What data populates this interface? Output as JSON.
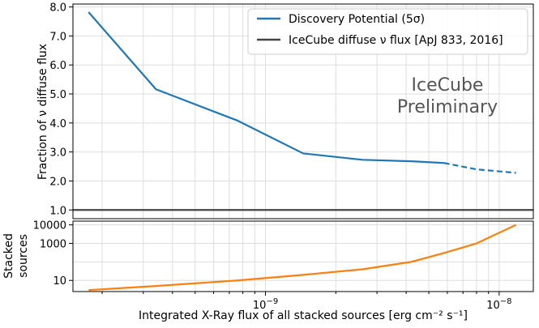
{
  "chart_data": [
    {
      "type": "line",
      "panel": "top",
      "xscale": "log",
      "xlim": [
        1.5e-10,
        1.4e-08
      ],
      "ylim": [
        0.7,
        8.1
      ],
      "ylabel": "Fraction of ν diffuse flux",
      "yticks": [
        1.0,
        2.0,
        3.0,
        4.0,
        5.0,
        6.0,
        7.0,
        8.0
      ],
      "ytick_labels": [
        "1.0",
        "2.0",
        "3.0",
        "4.0",
        "5.0",
        "6.0",
        "7.0",
        "8.0"
      ],
      "grid": true,
      "legend_position": "top-right",
      "series": [
        {
          "name": "Discovery Potential (5σ)",
          "color": "#1f77b4",
          "x": [
            1.75e-10,
            3.4e-10,
            7.6e-10,
            1.45e-09,
            2.6e-09,
            4.2e-09,
            5.8e-09
          ],
          "y": [
            7.82,
            5.16,
            4.08,
            2.95,
            2.73,
            2.68,
            2.62
          ],
          "dashed_x": [
            5.8e-09,
            8e-09,
            1.18e-08
          ],
          "dashed_y": [
            2.62,
            2.4,
            2.28
          ]
        },
        {
          "name": "IceCube diffuse ν flux [ApJ 833, 2016]",
          "color": "#444444",
          "y": 1.0
        }
      ],
      "annotation": [
        "IceCube",
        "Preliminary"
      ]
    },
    {
      "type": "line",
      "panel": "bottom",
      "xscale": "log",
      "yscale": "log",
      "xlim": [
        1.5e-10,
        1.4e-08
      ],
      "ylim": [
        2.5,
        16000
      ],
      "ylabel": [
        "Stacked",
        "sources"
      ],
      "xlabel": "Integrated X-Ray flux of all stacked sources [erg cm⁻² s⁻¹]",
      "xtick_labels": [
        {
          "x": 1e-09,
          "mantissa": "10",
          "exp": "−9"
        },
        {
          "x": 1e-08,
          "mantissa": "10",
          "exp": "−8"
        }
      ],
      "yticks": [
        10,
        1000,
        10000
      ],
      "ytick_labels": [
        "10",
        "1000",
        "10000"
      ],
      "grid": true,
      "series": [
        {
          "name": "",
          "color": "#ff7f0e",
          "x": [
            1.75e-10,
            3.4e-10,
            7.6e-10,
            1.45e-09,
            2.6e-09,
            4.2e-09,
            5.8e-09,
            8e-09,
            1.18e-08
          ],
          "y": [
            3,
            5,
            10,
            20,
            40,
            100,
            300,
            1000,
            10000
          ]
        }
      ]
    }
  ]
}
